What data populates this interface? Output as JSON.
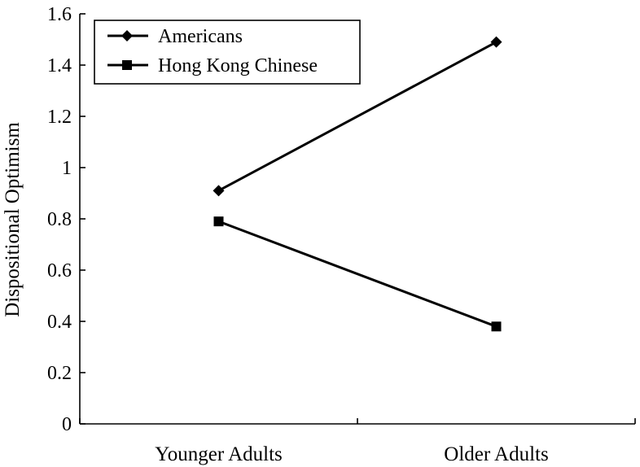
{
  "chart_data": {
    "type": "line",
    "categories": [
      "Younger Adults",
      "Older Adults"
    ],
    "series": [
      {
        "name": "Americans",
        "values": [
          0.91,
          1.49
        ],
        "marker": "diamond",
        "color": "#000000"
      },
      {
        "name": "Hong Kong Chinese",
        "values": [
          0.79,
          0.38
        ],
        "marker": "square",
        "color": "#000000"
      }
    ],
    "title": "",
    "xlabel": "",
    "ylabel": "Dispositional Optimism",
    "ylim": [
      0,
      1.6
    ],
    "yticks": [
      "0",
      "0.2",
      "0.4",
      "0.6",
      "0.8",
      "1",
      "1.2",
      "1.4",
      "1.6"
    ],
    "grid": false,
    "legend_position": "top-left"
  }
}
